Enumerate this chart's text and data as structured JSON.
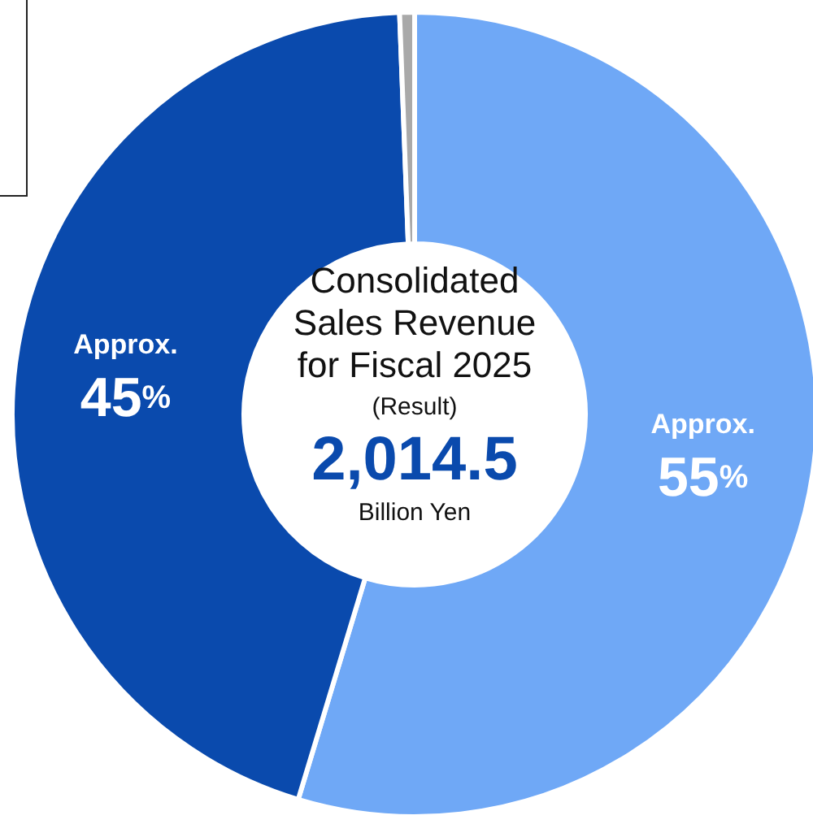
{
  "chart_data": {
    "type": "donut",
    "title": "Consolidated Sales Revenue for Fiscal 2025",
    "subtitle": "(Result)",
    "annotations": [
      "2,014.5",
      "Billion Yen"
    ],
    "categories": [
      null,
      null,
      null
    ],
    "values": [
      55,
      45,
      0.6
    ],
    "colors": [
      "#6fa8f6",
      "#0a4aad",
      "#a9a9a9"
    ],
    "value_labels": [
      "Approx.\n55%",
      "Approx.\n45%",
      null
    ]
  }
}
